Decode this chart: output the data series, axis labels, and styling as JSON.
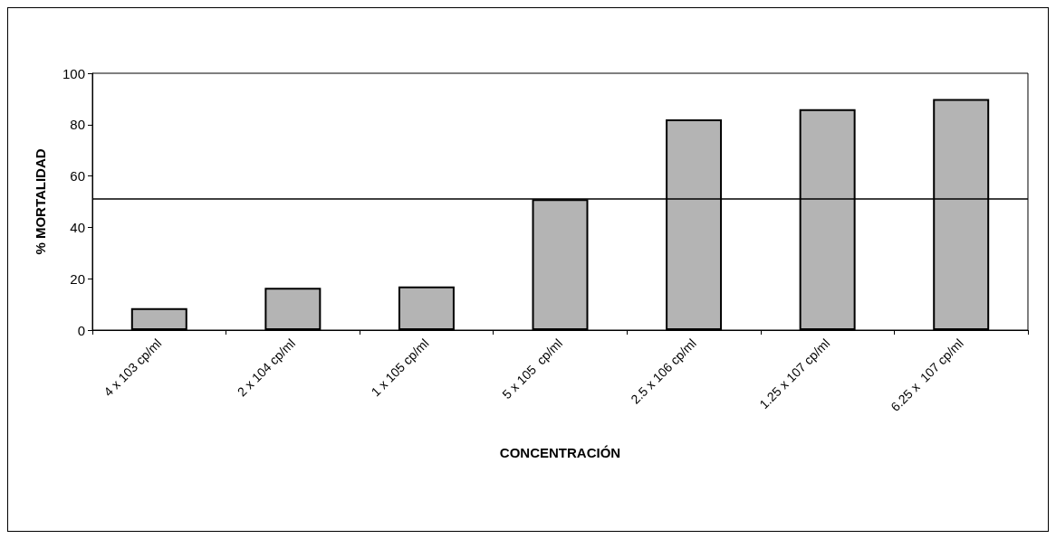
{
  "chart_data": {
    "type": "bar",
    "xlabel": "CONCENTRACIÓN",
    "ylabel": "% MORTALIDAD",
    "categories": [
      "4 x 103 cp/ml",
      "2 x 104 cp/ml",
      "1 x 105 cp/ml",
      "5 x 105  cp/ml",
      "2.5 x 106 cp/ml",
      "1.25 x 107 cp/ml",
      "6.25 x  107 cp/ml"
    ],
    "values": [
      8.5,
      16.5,
      17,
      51,
      82,
      86,
      90
    ],
    "color": "#b4b4b4",
    "ylim": [
      0,
      100
    ],
    "yticks": [
      0,
      20,
      40,
      60,
      80,
      100
    ],
    "grid": false,
    "ref_lines": [
      {
        "axis": "y",
        "value": 51,
        "color": "#000000"
      }
    ]
  }
}
